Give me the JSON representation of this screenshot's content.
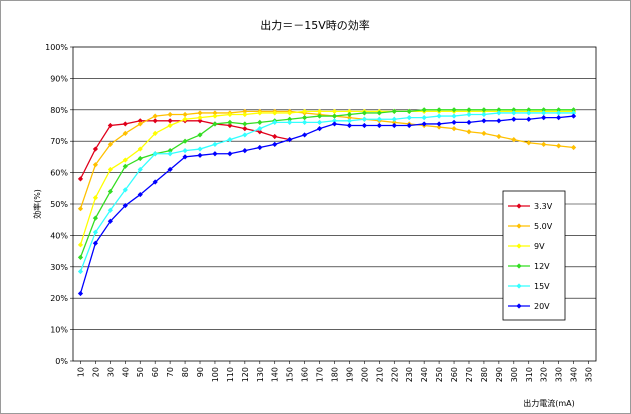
{
  "chart_data": {
    "type": "line",
    "title": "出力＝－15V時の効率",
    "xlabel": "出力電流(mA)",
    "ylabel": "効率(%)",
    "x_ticks": [
      10,
      20,
      30,
      40,
      50,
      60,
      70,
      80,
      90,
      100,
      110,
      120,
      130,
      140,
      150,
      160,
      170,
      180,
      190,
      200,
      210,
      220,
      230,
      240,
      250,
      260,
      270,
      280,
      290,
      300,
      310,
      320,
      330,
      340,
      350
    ],
    "y_ticks": [
      "0%",
      "10%",
      "20%",
      "30%",
      "40%",
      "50%",
      "60%",
      "70%",
      "80%",
      "90%",
      "100%"
    ],
    "xlim": [
      5,
      355
    ],
    "ylim": [
      0,
      100
    ],
    "grid": "horizontal",
    "legend_position": "right",
    "series": [
      {
        "name": "3.3V",
        "color": "#e0001b",
        "x": [
          10,
          20,
          30,
          40,
          50,
          60,
          70,
          80,
          90,
          100,
          110,
          120,
          130,
          140,
          150
        ],
        "y": [
          58,
          67.5,
          75,
          75.5,
          76.5,
          76.5,
          76.5,
          76.5,
          76.5,
          75.5,
          75,
          74,
          73,
          71.5,
          70.5
        ]
      },
      {
        "name": "5.0V",
        "color": "#ffc000",
        "x": [
          10,
          20,
          30,
          40,
          50,
          60,
          70,
          80,
          90,
          100,
          110,
          120,
          130,
          140,
          150,
          160,
          170,
          180,
          190,
          200,
          210,
          220,
          230,
          240,
          250,
          260,
          270,
          280,
          290,
          300,
          310,
          320,
          330,
          340
        ],
        "y": [
          48.5,
          62.5,
          69,
          72.5,
          75.5,
          78,
          78.5,
          78.5,
          79,
          79,
          79,
          79.5,
          79.5,
          79.5,
          79.5,
          79,
          78.5,
          78,
          77.5,
          77,
          76.5,
          76,
          75.5,
          75,
          74.5,
          74,
          73,
          72.5,
          71.5,
          70.5,
          69.5,
          69,
          68.5,
          68
        ]
      },
      {
        "name": "9V",
        "color": "#ffff00",
        "x": [
          10,
          20,
          30,
          40,
          50,
          60,
          70,
          80,
          90,
          100,
          110,
          120,
          130,
          140,
          150,
          160,
          170,
          180,
          190,
          200,
          210,
          220,
          230,
          240,
          250,
          260,
          270,
          280,
          290,
          300,
          310,
          320,
          330,
          340
        ],
        "y": [
          37,
          52,
          61,
          64,
          67.5,
          72.5,
          75,
          77,
          77.5,
          78,
          78.5,
          78.5,
          79,
          79,
          79,
          79.5,
          79.5,
          79.5,
          79.5,
          79.5,
          79.5,
          79.5,
          79.5,
          79.5,
          79.5,
          79.5,
          79.5,
          79.5,
          79.5,
          79.5,
          79.5,
          79.5,
          79.5,
          79.5
        ]
      },
      {
        "name": "12V",
        "color": "#33dd22",
        "x": [
          10,
          20,
          30,
          40,
          50,
          60,
          70,
          80,
          90,
          100,
          110,
          120,
          130,
          140,
          150,
          160,
          170,
          180,
          190,
          200,
          210,
          220,
          230,
          240,
          250,
          260,
          270,
          280,
          290,
          300,
          310,
          320,
          330,
          340
        ],
        "y": [
          33,
          45.5,
          54,
          62,
          64.5,
          66,
          67,
          70,
          72,
          75.5,
          76,
          75.5,
          76,
          76.5,
          77,
          77.5,
          78,
          78,
          78.5,
          79,
          79,
          79.5,
          79.5,
          80,
          80,
          80,
          80,
          80,
          80,
          80,
          80,
          80,
          80,
          80
        ]
      },
      {
        "name": "15V",
        "color": "#33ffff",
        "x": [
          10,
          20,
          30,
          40,
          50,
          60,
          70,
          80,
          90,
          100,
          110,
          120,
          130,
          140,
          150,
          160,
          170,
          180,
          190,
          200,
          210,
          220,
          230,
          240,
          250,
          260,
          270,
          280,
          290,
          300,
          310,
          320,
          330,
          340
        ],
        "y": [
          28.5,
          41,
          48,
          54.5,
          61,
          66,
          66,
          67,
          67.5,
          69,
          70.5,
          72,
          74,
          76,
          76,
          76,
          76,
          76.5,
          76.5,
          77,
          77,
          77,
          77.5,
          77.5,
          78,
          78,
          78.5,
          78.5,
          79,
          79,
          79,
          79,
          79,
          79
        ]
      },
      {
        "name": "20V",
        "color": "#0000ff",
        "x": [
          10,
          20,
          30,
          40,
          50,
          60,
          70,
          80,
          90,
          100,
          110,
          120,
          130,
          140,
          150,
          160,
          170,
          180,
          190,
          200,
          210,
          220,
          230,
          240,
          250,
          260,
          270,
          280,
          290,
          300,
          310,
          320,
          330,
          340
        ],
        "y": [
          21.5,
          37.5,
          44.5,
          49.5,
          53,
          57,
          61,
          65,
          65.5,
          66,
          66,
          67,
          68,
          69,
          70.5,
          72,
          74,
          75.5,
          75,
          75,
          75,
          75,
          75,
          75.5,
          75.5,
          76,
          76,
          76.5,
          76.5,
          77,
          77,
          77.5,
          77.5,
          78
        ]
      }
    ]
  }
}
